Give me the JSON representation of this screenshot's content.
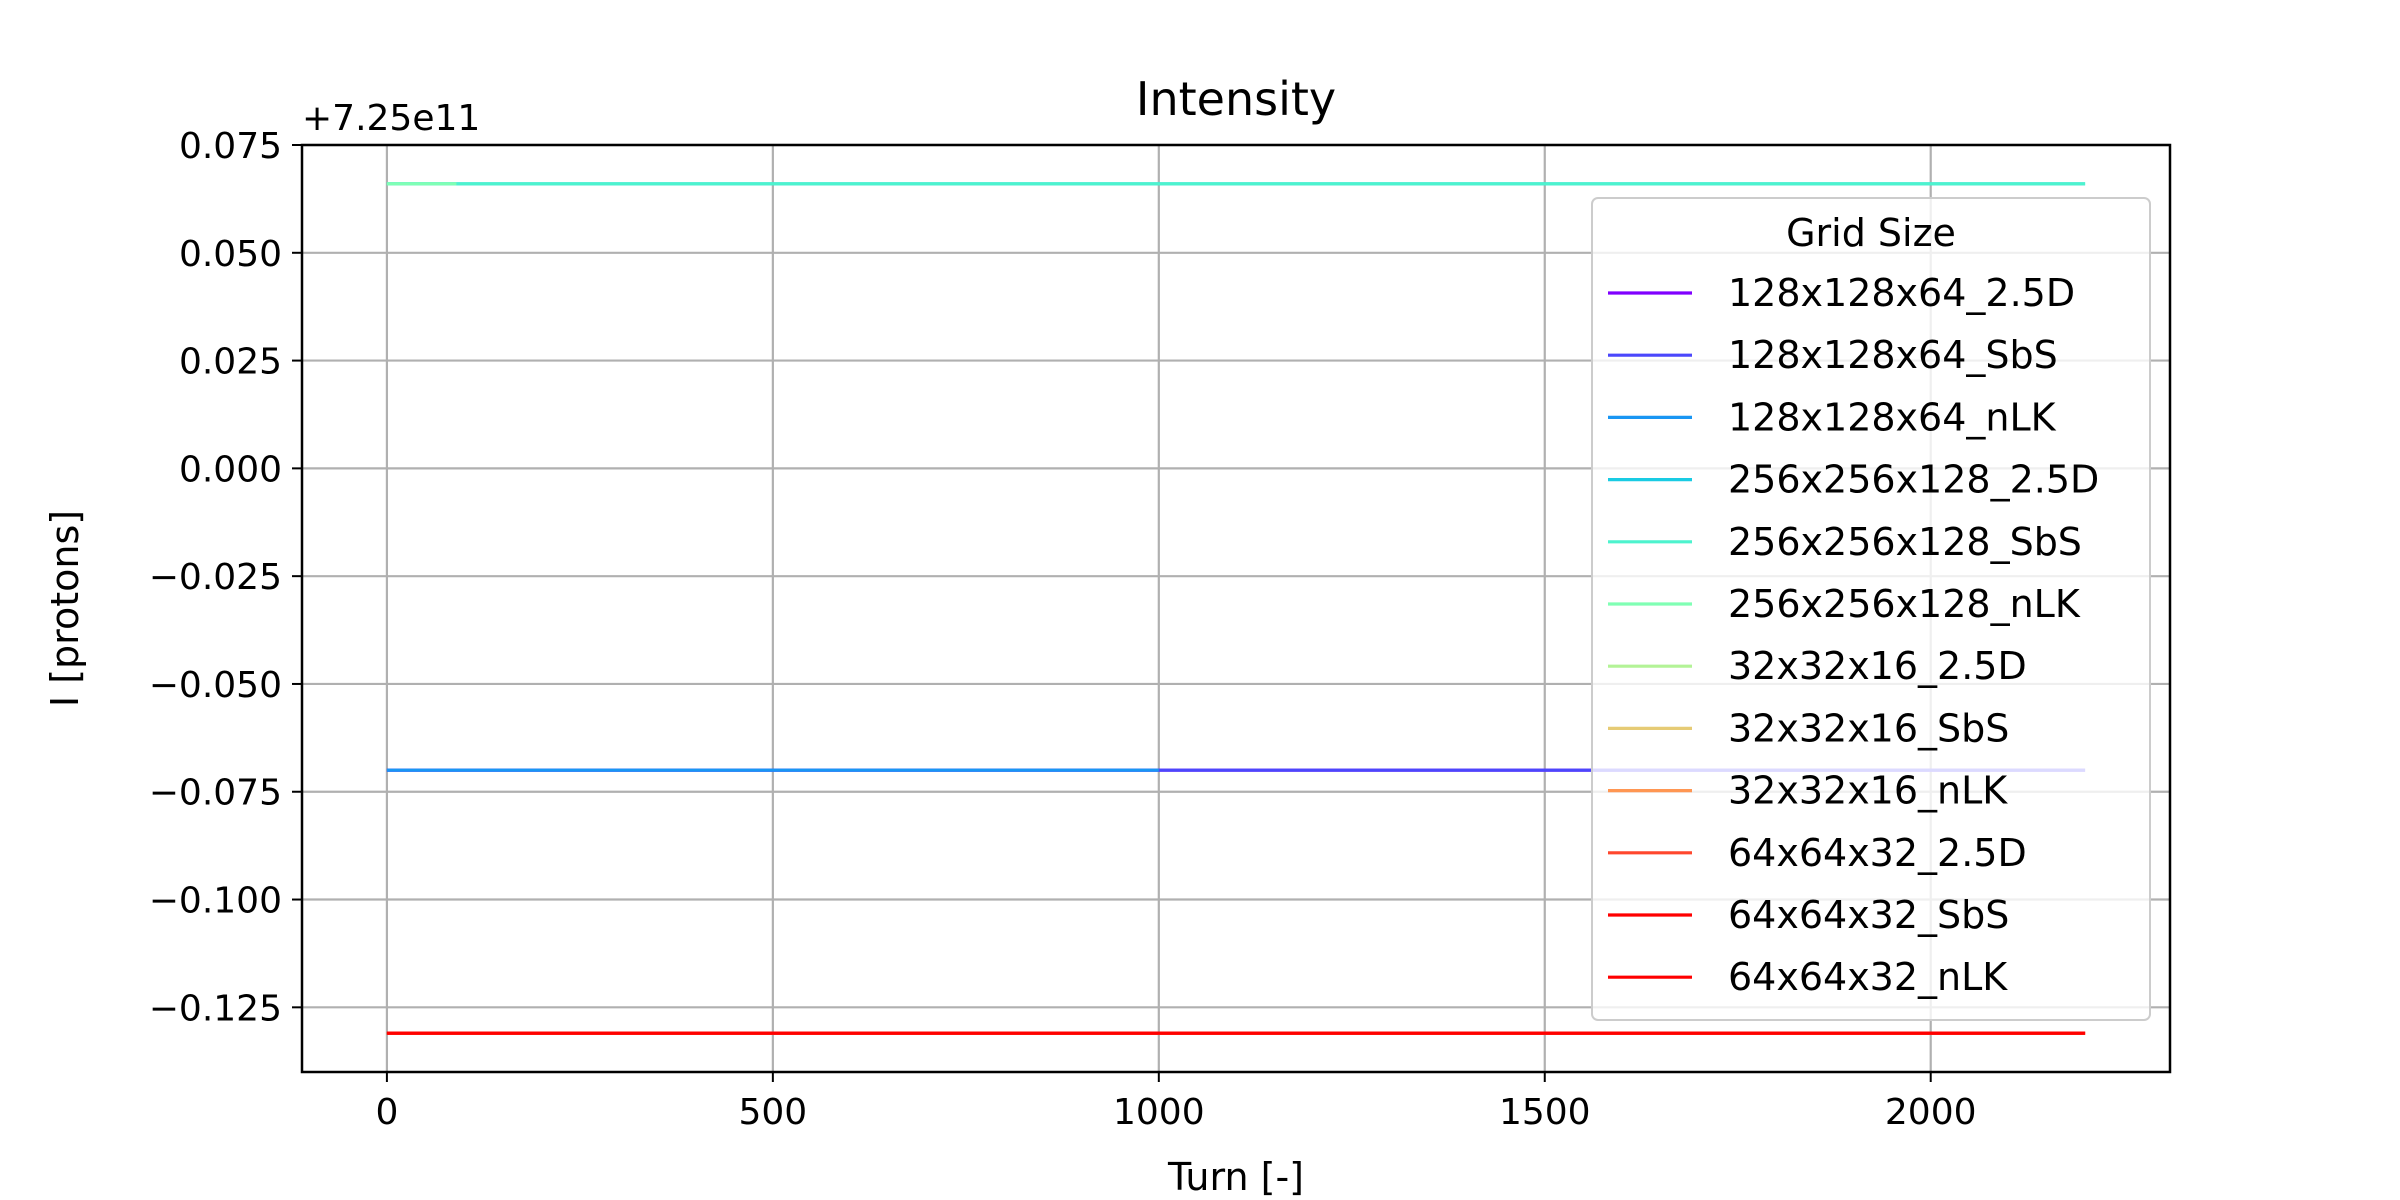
{
  "chart_data": {
    "type": "line",
    "title": "Intensity",
    "xlabel": "Turn [-]",
    "ylabel": "I [protons]",
    "y_offset_label": "+7.25e11",
    "xlim": [
      -110,
      2310
    ],
    "ylim": [
      -0.14,
      0.075
    ],
    "xticks": [
      0,
      500,
      1000,
      1500,
      2000
    ],
    "yticks": [
      0.075,
      0.05,
      0.025,
      0.0,
      -0.025,
      -0.05,
      -0.075,
      -0.1,
      -0.125
    ],
    "ytick_labels": [
      "0.075",
      "0.050",
      "0.025",
      "0.000",
      "−0.025",
      "−0.050",
      "−0.075",
      "−0.100",
      "−0.125"
    ],
    "grid": true,
    "legend": {
      "title": "Grid Size",
      "placement": "right"
    },
    "series": [
      {
        "name": "128x128x64_2.5D",
        "color": "#8000ff",
        "x": [
          0,
          2200
        ],
        "y": [
          -0.07,
          -0.07
        ]
      },
      {
        "name": "128x128x64_SbS",
        "color": "#4b47fc",
        "x": [
          0,
          2200
        ],
        "y": [
          -0.07,
          -0.07
        ]
      },
      {
        "name": "128x128x64_nLK",
        "color": "#1996f3",
        "x": [
          0,
          1000
        ],
        "y": [
          -0.07,
          -0.07
        ]
      },
      {
        "name": "256x256x128_2.5D",
        "color": "#19cbe3",
        "x": [
          0,
          2200
        ],
        "y": [
          0.066,
          0.066
        ]
      },
      {
        "name": "256x256x128_SbS",
        "color": "#4df3ce",
        "x": [
          0,
          2200
        ],
        "y": [
          0.066,
          0.066
        ]
      },
      {
        "name": "256x256x128_nLK",
        "color": "#80ffb4",
        "x": [
          0,
          90
        ],
        "y": [
          0.066,
          0.066
        ]
      },
      {
        "name": "32x32x16_2.5D",
        "color": "#b3f396",
        "x": [
          0,
          2200
        ],
        "y": [
          -0.131,
          -0.131
        ]
      },
      {
        "name": "32x32x16_SbS",
        "color": "#e6cb75",
        "x": [
          0,
          2200
        ],
        "y": [
          -0.131,
          -0.131
        ]
      },
      {
        "name": "32x32x16_nLK",
        "color": "#ff9652",
        "x": [
          0,
          2200
        ],
        "y": [
          -0.131,
          -0.131
        ]
      },
      {
        "name": "64x64x32_2.5D",
        "color": "#ff472d",
        "x": [
          0,
          2200
        ],
        "y": [
          -0.131,
          -0.131
        ]
      },
      {
        "name": "64x64x32_SbS",
        "color": "#ff0000",
        "x": [
          0,
          2200
        ],
        "y": [
          -0.131,
          -0.131
        ]
      },
      {
        "name": "64x64x32_nLK",
        "color": "#ff0000",
        "x": [
          0,
          2200
        ],
        "y": [
          -0.131,
          -0.131
        ]
      }
    ]
  }
}
